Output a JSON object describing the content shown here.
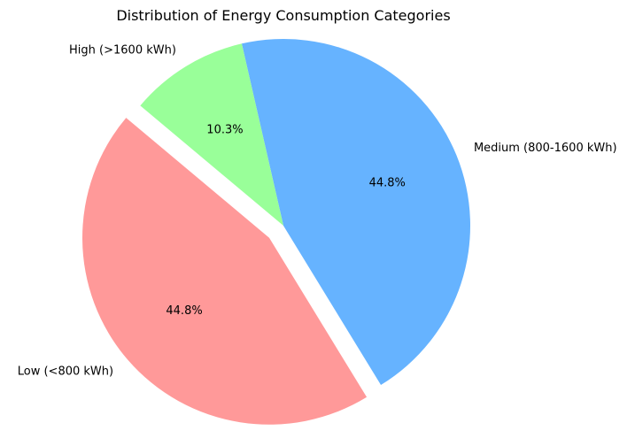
{
  "chart_data": {
    "type": "pie",
    "title": "Distribution of Energy Consumption Categories",
    "slices": [
      {
        "label": "Low (<800 kWh)",
        "value": 44.8,
        "pct_label": "44.8%",
        "color": "#ff9999",
        "exploded": true
      },
      {
        "label": "Medium (800-1600 kWh)",
        "value": 44.8,
        "pct_label": "44.8%",
        "color": "#66b3ff",
        "exploded": false
      },
      {
        "label": "High (>1600 kWh)",
        "value": 10.3,
        "pct_label": "10.3%",
        "color": "#99ff99",
        "exploded": false
      }
    ],
    "start_angle_deg": 140,
    "direction": "counterclockwise"
  }
}
